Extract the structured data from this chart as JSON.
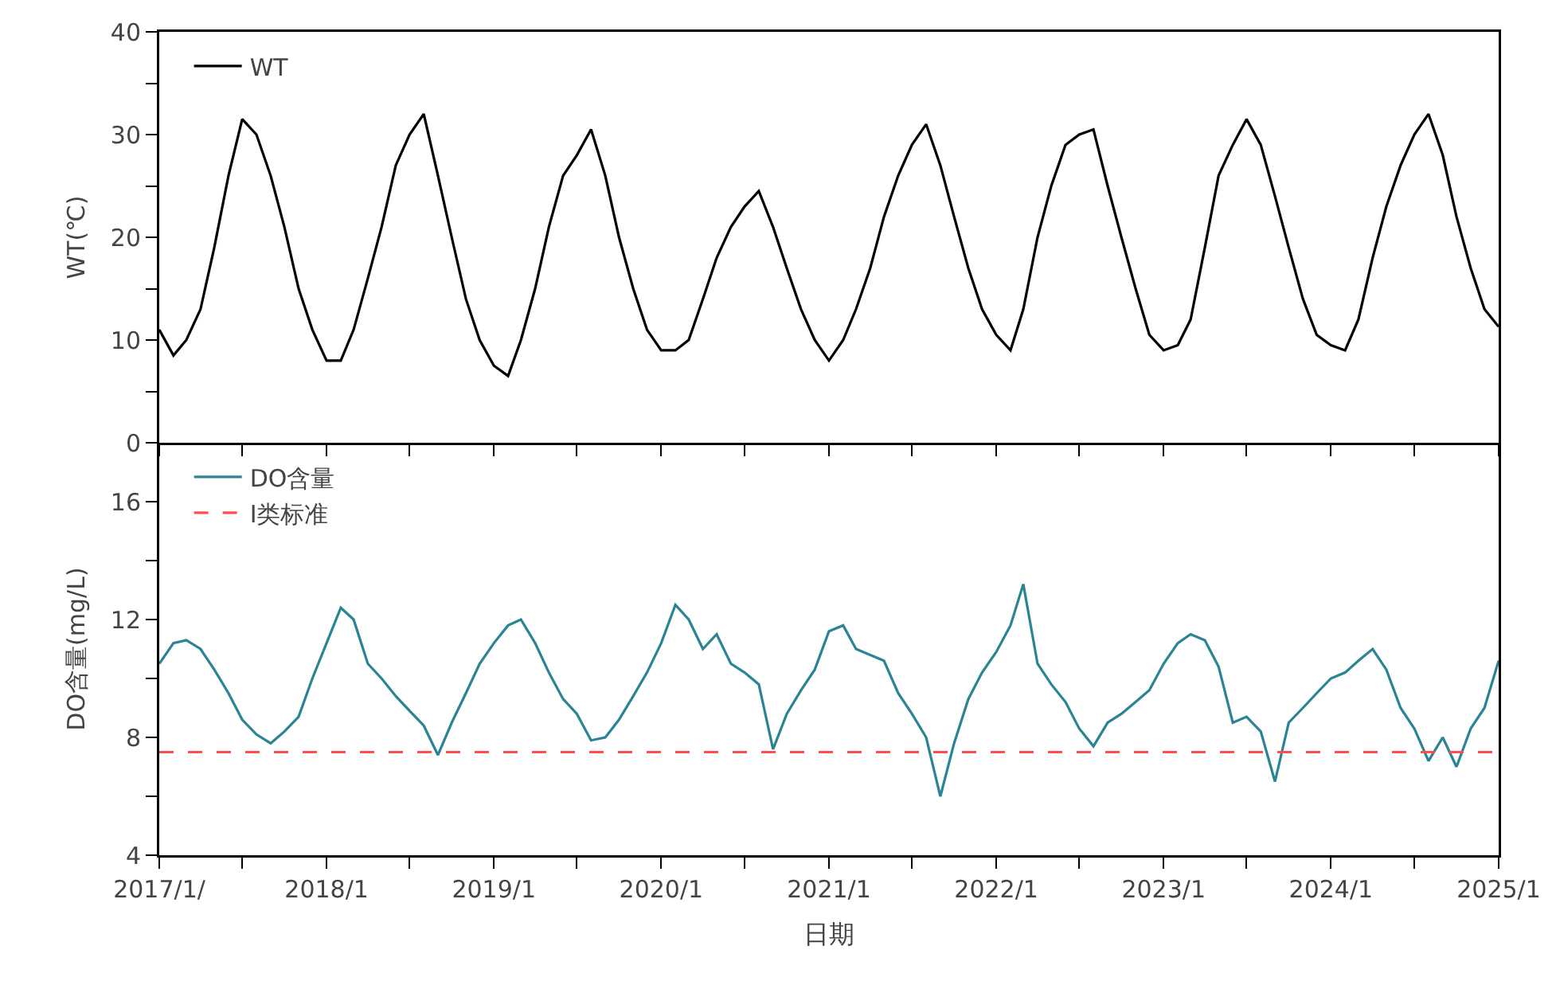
{
  "chart_data": [
    {
      "type": "line",
      "ylabel": "WT(℃)",
      "legend": "top left",
      "grid": false,
      "tick_labels": "y",
      "marker": "none",
      "line_style": "solid",
      "x": [
        "2017-01-01",
        "2017-02-01",
        "2017-03-01",
        "2017-04-01",
        "2017-05-01",
        "2017-06-01",
        "2017-07-01",
        "2017-08-01",
        "2017-09-01",
        "2017-10-01",
        "2017-11-01",
        "2017-12-01",
        "2018-01-01",
        "2018-02-01",
        "2018-03-01",
        "2018-04-01",
        "2018-05-01",
        "2018-06-01",
        "2018-07-01",
        "2018-08-01",
        "2018-09-01",
        "2018-10-01",
        "2018-11-01",
        "2018-12-01",
        "2019-01-01",
        "2019-02-01",
        "2019-03-01",
        "2019-04-01",
        "2019-05-01",
        "2019-06-01",
        "2019-07-01",
        "2019-08-01",
        "2019-09-01",
        "2019-10-01",
        "2019-11-01",
        "2019-12-01",
        "2020-01-01",
        "2020-02-01",
        "2020-03-01",
        "2020-04-01",
        "2020-05-01",
        "2020-06-01",
        "2020-07-01",
        "2020-08-01",
        "2020-09-01",
        "2020-10-01",
        "2020-11-01",
        "2020-12-01",
        "2021-01-01",
        "2021-02-01",
        "2021-03-01",
        "2021-04-01",
        "2021-05-01",
        "2021-06-01",
        "2021-07-01",
        "2021-08-01",
        "2021-09-01",
        "2021-10-01",
        "2021-11-01",
        "2021-12-01",
        "2022-01-01",
        "2022-02-01",
        "2022-03-01",
        "2022-04-01",
        "2022-05-01",
        "2022-06-01",
        "2022-07-01",
        "2022-08-01",
        "2022-09-01",
        "2022-10-01",
        "2022-11-01",
        "2022-12-01",
        "2023-01-01",
        "2023-02-01",
        "2023-03-01",
        "2023-04-01",
        "2023-05-01",
        "2023-06-01",
        "2023-07-01",
        "2023-08-01",
        "2023-09-01",
        "2023-10-01",
        "2023-11-01",
        "2023-12-01",
        "2024-01-01",
        "2024-02-01",
        "2024-03-01",
        "2024-04-01",
        "2024-05-01",
        "2024-06-01",
        "2024-07-01",
        "2024-08-01",
        "2024-09-01",
        "2024-10-01",
        "2024-11-01",
        "2024-12-01",
        "2025-01-01"
      ],
      "series": [
        {
          "name": "WT",
          "color": "#000000",
          "values": [
            11,
            8.5,
            10,
            13,
            19,
            26,
            31.5,
            30,
            26,
            21,
            15,
            11,
            8,
            8,
            11,
            16,
            21,
            27,
            30,
            32,
            26,
            20,
            14,
            10,
            7.5,
            6.5,
            10,
            15,
            21,
            26,
            28,
            30.5,
            26,
            20,
            15,
            11,
            9,
            9,
            10,
            14,
            18,
            21,
            23,
            24.5,
            21,
            17,
            13,
            10,
            8,
            10,
            13,
            17,
            22,
            26,
            29,
            31,
            27,
            22,
            17,
            13,
            10.5,
            9,
            13,
            20,
            25,
            29,
            30,
            30.5,
            25,
            20,
            15,
            10.5,
            9,
            9.5,
            12,
            19,
            26,
            29,
            31.5,
            29,
            24,
            19,
            14,
            10.5,
            9.5,
            9,
            12,
            18,
            23,
            27,
            30,
            32,
            28,
            22,
            17,
            13,
            11.3
          ]
        }
      ],
      "xlim": [
        "2017-01-01",
        "2025-01-01"
      ],
      "xticks": [
        {
          "value": "2017-01-01",
          "label": null
        },
        {
          "value": "2017-07-01",
          "label": null
        },
        {
          "value": "2018-01-01",
          "label": null
        },
        {
          "value": "2018-07-01",
          "label": null
        },
        {
          "value": "2019-01-01",
          "label": null
        },
        {
          "value": "2019-07-01",
          "label": null
        },
        {
          "value": "2020-01-01",
          "label": null
        },
        {
          "value": "2020-07-01",
          "label": null
        },
        {
          "value": "2021-01-01",
          "label": null
        },
        {
          "value": "2021-07-01",
          "label": null
        },
        {
          "value": "2022-01-01",
          "label": null
        },
        {
          "value": "2022-07-01",
          "label": null
        },
        {
          "value": "2023-01-01",
          "label": null
        },
        {
          "value": "2023-07-01",
          "label": null
        },
        {
          "value": "2024-01-01",
          "label": null
        },
        {
          "value": "2024-07-01",
          "label": null
        },
        {
          "value": "2025-01-01",
          "label": null
        }
      ],
      "ylim": [
        0,
        40
      ],
      "yticks": [
        0,
        {
          "value": 5,
          "label": null
        },
        10,
        {
          "value": 15,
          "label": null
        },
        20,
        {
          "value": 25,
          "label": null
        },
        30,
        {
          "value": 35,
          "label": null
        },
        40
      ]
    },
    {
      "type": "line",
      "xlabel": "日期",
      "ylabel": "DO含量(mg/L)",
      "legend": "top left",
      "grid": false,
      "marker": "none",
      "line_style": "solid",
      "x": [
        "2017-01-01",
        "2017-02-01",
        "2017-03-01",
        "2017-04-01",
        "2017-05-01",
        "2017-06-01",
        "2017-07-01",
        "2017-08-01",
        "2017-09-01",
        "2017-10-01",
        "2017-11-01",
        "2017-12-01",
        "2018-01-01",
        "2018-02-01",
        "2018-03-01",
        "2018-04-01",
        "2018-05-01",
        "2018-06-01",
        "2018-07-01",
        "2018-08-01",
        "2018-09-01",
        "2018-10-01",
        "2018-11-01",
        "2018-12-01",
        "2019-01-01",
        "2019-02-01",
        "2019-03-01",
        "2019-04-01",
        "2019-05-01",
        "2019-06-01",
        "2019-07-01",
        "2019-08-01",
        "2019-09-01",
        "2019-10-01",
        "2019-11-01",
        "2019-12-01",
        "2020-01-01",
        "2020-02-01",
        "2020-03-01",
        "2020-04-01",
        "2020-05-01",
        "2020-06-01",
        "2020-07-01",
        "2020-08-01",
        "2020-09-01",
        "2020-10-01",
        "2020-11-01",
        "2020-12-01",
        "2021-01-01",
        "2021-02-01",
        "2021-03-01",
        "2021-04-01",
        "2021-05-01",
        "2021-06-01",
        "2021-07-01",
        "2021-08-01",
        "2021-09-01",
        "2021-10-01",
        "2021-11-01",
        "2021-12-01",
        "2022-01-01",
        "2022-02-01",
        "2022-03-01",
        "2022-04-01",
        "2022-05-01",
        "2022-06-01",
        "2022-07-01",
        "2022-08-01",
        "2022-09-01",
        "2022-10-01",
        "2022-11-01",
        "2022-12-01",
        "2023-01-01",
        "2023-02-01",
        "2023-03-01",
        "2023-04-01",
        "2023-05-01",
        "2023-06-01",
        "2023-07-01",
        "2023-08-01",
        "2023-09-01",
        "2023-10-01",
        "2023-11-01",
        "2023-12-01",
        "2024-01-01",
        "2024-02-01",
        "2024-03-01",
        "2024-04-01",
        "2024-05-01",
        "2024-06-01",
        "2024-07-01",
        "2024-08-01",
        "2024-09-01",
        "2024-10-01",
        "2024-11-01",
        "2024-12-01",
        "2025-01-01"
      ],
      "series": [
        {
          "name": "DO含量",
          "color": "#2a8494",
          "values": [
            10.5,
            11.2,
            11.3,
            11,
            10.3,
            9.5,
            8.6,
            8.1,
            7.8,
            8.2,
            8.7,
            10,
            11.2,
            12.4,
            12,
            10.5,
            10,
            9.4,
            8.9,
            8.4,
            7.4,
            8.5,
            9.5,
            10.5,
            11.2,
            11.8,
            12,
            11.2,
            10.2,
            9.3,
            8.8,
            7.9,
            8,
            8.6,
            9.4,
            10.2,
            11.2,
            12.5,
            12,
            11,
            11.5,
            10.5,
            10.2,
            9.8,
            7.6,
            8.8,
            9.6,
            10.3,
            11.6,
            11.8,
            11,
            10.8,
            10.6,
            9.5,
            8.8,
            8,
            6,
            7.8,
            9.3,
            10.2,
            10.9,
            11.8,
            13.2,
            10.5,
            9.8,
            9.2,
            8.3,
            7.7,
            8.5,
            8.8,
            9.2,
            9.6,
            10.5,
            11.2,
            11.5,
            11.3,
            10.4,
            8.5,
            8.7,
            8.2,
            6.5,
            8.5,
            9,
            9.5,
            10,
            10.2,
            10.6,
            11,
            10.3,
            9,
            8.3,
            7.2,
            8,
            7,
            8.3,
            9,
            10.6
          ]
        }
      ],
      "ref_lines": [
        {
          "axis": "y",
          "value": 7.5,
          "label": "Ⅰ类标准",
          "color": "#ff4d4d",
          "line_style": "dashed"
        }
      ],
      "xlim": [
        "2017-01-01",
        "2025-01-01"
      ],
      "xticks": [
        {
          "value": "2017-01-01",
          "label": "2017/1/"
        },
        {
          "value": "2017-07-01",
          "label": null
        },
        {
          "value": "2018-01-01",
          "label": "2018/1"
        },
        {
          "value": "2018-07-01",
          "label": null
        },
        {
          "value": "2019-01-01",
          "label": "2019/1"
        },
        {
          "value": "2019-07-01",
          "label": null
        },
        {
          "value": "2020-01-01",
          "label": "2020/1"
        },
        {
          "value": "2020-07-01",
          "label": null
        },
        {
          "value": "2021-01-01",
          "label": "2021/1"
        },
        {
          "value": "2021-07-01",
          "label": null
        },
        {
          "value": "2022-01-01",
          "label": "2022/1"
        },
        {
          "value": "2022-07-01",
          "label": null
        },
        {
          "value": "2023-01-01",
          "label": "2023/1"
        },
        {
          "value": "2023-07-01",
          "label": null
        },
        {
          "value": "2024-01-01",
          "label": "2024/1"
        },
        {
          "value": "2024-07-01",
          "label": null
        },
        {
          "value": "2025-01-01",
          "label": "2025/1"
        }
      ],
      "ylim": [
        4,
        18
      ],
      "yticks": [
        4,
        {
          "value": 6,
          "label": null
        },
        8,
        {
          "value": 10,
          "label": null
        },
        12,
        {
          "value": 14,
          "label": null
        },
        16
      ]
    }
  ]
}
